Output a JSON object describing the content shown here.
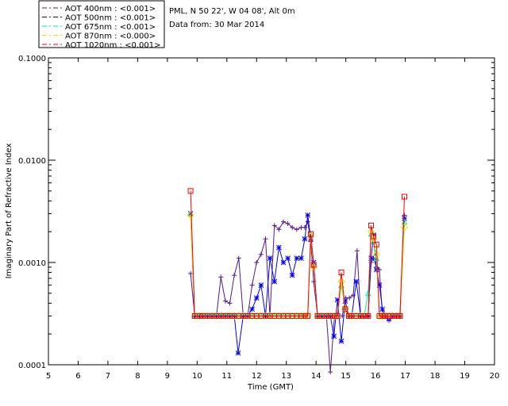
{
  "chart_data": {
    "type": "line",
    "header": {
      "site": "PML, N 50 22', W 04 08', Alt 0m",
      "date": "Data from: 30 Mar 2014"
    },
    "xlabel": "Time (GMT)",
    "ylabel": "Imaginary Part of Refractive Index",
    "xlim": [
      5,
      20
    ],
    "ylim": [
      0.0001,
      0.1
    ],
    "yscale": "log",
    "x_ticks": [
      "5",
      "6",
      "7",
      "8",
      "9",
      "10",
      "11",
      "12",
      "13",
      "14",
      "15",
      "16",
      "17",
      "18",
      "19",
      "20"
    ],
    "y_ticks": [
      {
        "value": 0.0001,
        "label": "0.0001"
      },
      {
        "value": 0.001,
        "label": "0.0010"
      },
      {
        "value": 0.01,
        "label": "0.0100"
      },
      {
        "value": 0.1,
        "label": "0.1000"
      }
    ],
    "legend_position": "top-left outside",
    "series": [
      {
        "name": "AOT  400nm : <0.001>",
        "color": "#551a8b",
        "marker": "plus",
        "points": [
          [
            9.78,
            0.00078
          ],
          [
            9.92,
            0.0003
          ],
          [
            10.08,
            0.0003
          ],
          [
            10.2,
            0.0003
          ],
          [
            10.35,
            0.0003
          ],
          [
            10.5,
            0.0003
          ],
          [
            10.65,
            0.0003
          ],
          [
            10.8,
            0.00072
          ],
          [
            10.95,
            0.00042
          ],
          [
            11.1,
            0.0004
          ],
          [
            11.25,
            0.00075
          ],
          [
            11.4,
            0.0011
          ],
          [
            11.55,
            0.0003
          ],
          [
            11.7,
            0.0003
          ],
          [
            11.85,
            0.0006
          ],
          [
            12.0,
            0.001
          ],
          [
            12.15,
            0.0012
          ],
          [
            12.3,
            0.0017
          ],
          [
            12.45,
            0.0003
          ],
          [
            12.6,
            0.0023
          ],
          [
            12.75,
            0.0021
          ],
          [
            12.9,
            0.0025
          ],
          [
            13.05,
            0.0024
          ],
          [
            13.2,
            0.0022
          ],
          [
            13.35,
            0.0021
          ],
          [
            13.5,
            0.0022
          ],
          [
            13.62,
            0.0022
          ],
          [
            13.72,
            0.0025
          ],
          [
            13.82,
            0.0016
          ],
          [
            13.92,
            0.00065
          ],
          [
            14.05,
            0.0003
          ],
          [
            14.2,
            0.0003
          ],
          [
            14.35,
            0.0003
          ],
          [
            14.48,
            8.5e-05
          ],
          [
            14.62,
            0.0003
          ],
          [
            14.75,
            0.0003
          ],
          [
            14.88,
            0.0003
          ],
          [
            15.0,
            0.00045
          ],
          [
            15.12,
            0.00045
          ],
          [
            15.25,
            0.00048
          ],
          [
            15.38,
            0.0013
          ],
          [
            15.5,
            0.0003
          ],
          [
            15.62,
            0.0003
          ],
          [
            15.75,
            0.0003
          ],
          [
            15.85,
            0.001
          ],
          [
            15.93,
            0.0011
          ],
          [
            16.03,
            0.0009
          ],
          [
            16.13,
            0.00085
          ],
          [
            16.23,
            0.0003
          ],
          [
            16.33,
            0.0003
          ],
          [
            16.45,
            0.00027
          ],
          [
            16.58,
            0.0003
          ],
          [
            16.7,
            0.0003
          ],
          [
            16.82,
            0.0003
          ],
          [
            16.97,
            0.0029
          ]
        ]
      },
      {
        "name": "AOT  500nm : <0.001>",
        "color": "#0000ff",
        "marker": "star",
        "points": [
          [
            9.78,
            0.003
          ],
          [
            9.92,
            0.0003
          ],
          [
            10.08,
            0.0003
          ],
          [
            10.2,
            0.0003
          ],
          [
            10.35,
            0.0003
          ],
          [
            10.5,
            0.0003
          ],
          [
            10.65,
            0.0003
          ],
          [
            10.8,
            0.0003
          ],
          [
            10.95,
            0.0003
          ],
          [
            11.1,
            0.0003
          ],
          [
            11.25,
            0.0003
          ],
          [
            11.38,
            0.00013
          ],
          [
            11.55,
            0.0003
          ],
          [
            11.7,
            0.0003
          ],
          [
            11.85,
            0.00035
          ],
          [
            12.0,
            0.00045
          ],
          [
            12.15,
            0.0006
          ],
          [
            12.3,
            0.0003
          ],
          [
            12.45,
            0.0011
          ],
          [
            12.6,
            0.00065
          ],
          [
            12.75,
            0.0014
          ],
          [
            12.9,
            0.001
          ],
          [
            13.05,
            0.0011
          ],
          [
            13.2,
            0.00075
          ],
          [
            13.35,
            0.0011
          ],
          [
            13.5,
            0.0011
          ],
          [
            13.62,
            0.0017
          ],
          [
            13.72,
            0.0029
          ],
          [
            13.82,
            0.0017
          ],
          [
            13.92,
            0.001
          ],
          [
            14.05,
            0.0003
          ],
          [
            14.2,
            0.0003
          ],
          [
            14.35,
            0.0003
          ],
          [
            14.48,
            0.0003
          ],
          [
            14.6,
            0.00019
          ],
          [
            14.72,
            0.00043
          ],
          [
            14.85,
            0.00017
          ],
          [
            14.98,
            0.00042
          ],
          [
            15.1,
            0.0003
          ],
          [
            15.2,
            0.0003
          ],
          [
            15.35,
            0.00065
          ],
          [
            15.5,
            0.0003
          ],
          [
            15.62,
            0.0003
          ],
          [
            15.75,
            0.0003
          ],
          [
            15.85,
            0.0011
          ],
          [
            15.93,
            0.00185
          ],
          [
            16.03,
            0.00085
          ],
          [
            16.13,
            0.0006
          ],
          [
            16.23,
            0.00035
          ],
          [
            16.33,
            0.0003
          ],
          [
            16.45,
            0.00028
          ],
          [
            16.58,
            0.0003
          ],
          [
            16.7,
            0.0003
          ],
          [
            16.82,
            0.0003
          ],
          [
            16.97,
            0.0027
          ]
        ]
      },
      {
        "name": "AOT  675nm : <0.001>",
        "color": "#00e5a0",
        "marker": "triangle",
        "points": [
          [
            9.78,
            0.003
          ],
          [
            9.92,
            0.0003
          ],
          [
            10.08,
            0.0003
          ],
          [
            10.2,
            0.0003
          ],
          [
            10.35,
            0.0003
          ],
          [
            10.5,
            0.0003
          ],
          [
            10.65,
            0.0003
          ],
          [
            10.8,
            0.0003
          ],
          [
            10.95,
            0.0003
          ],
          [
            11.1,
            0.0003
          ],
          [
            11.25,
            0.0003
          ],
          [
            11.4,
            0.0003
          ],
          [
            11.55,
            0.0003
          ],
          [
            11.7,
            0.0003
          ],
          [
            11.85,
            0.0003
          ],
          [
            12.0,
            0.0003
          ],
          [
            12.15,
            0.0003
          ],
          [
            12.3,
            0.0003
          ],
          [
            12.45,
            0.0003
          ],
          [
            12.6,
            0.0003
          ],
          [
            12.75,
            0.0003
          ],
          [
            12.9,
            0.0003
          ],
          [
            13.05,
            0.0003
          ],
          [
            13.2,
            0.0003
          ],
          [
            13.35,
            0.0003
          ],
          [
            13.5,
            0.0003
          ],
          [
            13.62,
            0.0003
          ],
          [
            13.72,
            0.0003
          ],
          [
            13.82,
            0.0019
          ],
          [
            13.92,
            0.00095
          ],
          [
            14.05,
            0.0003
          ],
          [
            14.2,
            0.0003
          ],
          [
            14.35,
            0.0003
          ],
          [
            14.48,
            0.0003
          ],
          [
            14.62,
            0.0003
          ],
          [
            14.72,
            0.0003
          ],
          [
            14.85,
            0.0006
          ],
          [
            14.98,
            0.00035
          ],
          [
            15.1,
            0.0003
          ],
          [
            15.2,
            0.0003
          ],
          [
            15.35,
            0.0003
          ],
          [
            15.5,
            0.0003
          ],
          [
            15.62,
            0.0003
          ],
          [
            15.75,
            0.0005
          ],
          [
            15.85,
            0.0019
          ],
          [
            15.93,
            0.0016
          ],
          [
            16.03,
            0.0011
          ],
          [
            16.13,
            0.0003
          ],
          [
            16.23,
            0.0003
          ],
          [
            16.33,
            0.0003
          ],
          [
            16.45,
            0.0003
          ],
          [
            16.58,
            0.0003
          ],
          [
            16.7,
            0.0003
          ],
          [
            16.82,
            0.0003
          ],
          [
            16.97,
            0.0025
          ]
        ]
      },
      {
        "name": "AOT  870nm : <0.000>",
        "color": "#ffd700",
        "marker": "diamond",
        "points": [
          [
            9.78,
            0.0029
          ],
          [
            9.92,
            0.0003
          ],
          [
            10.08,
            0.0003
          ],
          [
            10.2,
            0.0003
          ],
          [
            10.35,
            0.0003
          ],
          [
            10.5,
            0.0003
          ],
          [
            10.65,
            0.0003
          ],
          [
            10.8,
            0.0003
          ],
          [
            10.95,
            0.0003
          ],
          [
            11.1,
            0.0003
          ],
          [
            11.25,
            0.0003
          ],
          [
            11.4,
            0.0003
          ],
          [
            11.55,
            0.0003
          ],
          [
            11.7,
            0.0003
          ],
          [
            11.85,
            0.0003
          ],
          [
            12.0,
            0.0003
          ],
          [
            12.15,
            0.0003
          ],
          [
            12.3,
            0.0003
          ],
          [
            12.45,
            0.0003
          ],
          [
            12.6,
            0.0003
          ],
          [
            12.75,
            0.0003
          ],
          [
            12.9,
            0.0003
          ],
          [
            13.05,
            0.0003
          ],
          [
            13.2,
            0.0003
          ],
          [
            13.35,
            0.0003
          ],
          [
            13.5,
            0.0003
          ],
          [
            13.62,
            0.0003
          ],
          [
            13.72,
            0.0003
          ],
          [
            13.82,
            0.0018
          ],
          [
            13.92,
            0.0009
          ],
          [
            14.05,
            0.0003
          ],
          [
            14.2,
            0.0003
          ],
          [
            14.35,
            0.0003
          ],
          [
            14.48,
            0.0003
          ],
          [
            14.62,
            0.0003
          ],
          [
            14.72,
            0.0003
          ],
          [
            14.85,
            0.00065
          ],
          [
            14.98,
            0.00035
          ],
          [
            15.1,
            0.0003
          ],
          [
            15.2,
            0.0003
          ],
          [
            15.35,
            0.0003
          ],
          [
            15.5,
            0.0003
          ],
          [
            15.62,
            0.0003
          ],
          [
            15.75,
            0.0003
          ],
          [
            15.85,
            0.002
          ],
          [
            15.93,
            0.0017
          ],
          [
            16.03,
            0.0012
          ],
          [
            16.13,
            0.0003
          ],
          [
            16.23,
            0.0003
          ],
          [
            16.33,
            0.0003
          ],
          [
            16.45,
            0.0003
          ],
          [
            16.58,
            0.0003
          ],
          [
            16.7,
            0.0003
          ],
          [
            16.82,
            0.0003
          ],
          [
            16.97,
            0.0022
          ]
        ]
      },
      {
        "name": "AOT 1020nm : <0.001>",
        "color": "#ff0000",
        "marker": "square",
        "points": [
          [
            9.78,
            0.005
          ],
          [
            9.92,
            0.0003
          ],
          [
            10.08,
            0.0003
          ],
          [
            10.2,
            0.0003
          ],
          [
            10.35,
            0.0003
          ],
          [
            10.5,
            0.0003
          ],
          [
            10.65,
            0.0003
          ],
          [
            10.8,
            0.0003
          ],
          [
            10.95,
            0.0003
          ],
          [
            11.1,
            0.0003
          ],
          [
            11.25,
            0.0003
          ],
          [
            11.4,
            0.0003
          ],
          [
            11.55,
            0.0003
          ],
          [
            11.7,
            0.0003
          ],
          [
            11.85,
            0.0003
          ],
          [
            12.0,
            0.0003
          ],
          [
            12.15,
            0.0003
          ],
          [
            12.3,
            0.0003
          ],
          [
            12.45,
            0.0003
          ],
          [
            12.6,
            0.0003
          ],
          [
            12.75,
            0.0003
          ],
          [
            12.9,
            0.0003
          ],
          [
            13.05,
            0.0003
          ],
          [
            13.2,
            0.0003
          ],
          [
            13.35,
            0.0003
          ],
          [
            13.5,
            0.0003
          ],
          [
            13.62,
            0.0003
          ],
          [
            13.72,
            0.0003
          ],
          [
            13.82,
            0.0019
          ],
          [
            13.92,
            0.00095
          ],
          [
            14.05,
            0.0003
          ],
          [
            14.2,
            0.0003
          ],
          [
            14.35,
            0.0003
          ],
          [
            14.48,
            0.0003
          ],
          [
            14.62,
            0.0003
          ],
          [
            14.72,
            0.0003
          ],
          [
            14.85,
            0.0008
          ],
          [
            14.98,
            0.00035
          ],
          [
            15.1,
            0.0003
          ],
          [
            15.2,
            0.0003
          ],
          [
            15.35,
            0.0003
          ],
          [
            15.5,
            0.0003
          ],
          [
            15.62,
            0.0003
          ],
          [
            15.75,
            0.0003
          ],
          [
            15.85,
            0.0023
          ],
          [
            15.93,
            0.0018
          ],
          [
            16.03,
            0.0015
          ],
          [
            16.13,
            0.0003
          ],
          [
            16.23,
            0.0003
          ],
          [
            16.33,
            0.0003
          ],
          [
            16.45,
            0.0003
          ],
          [
            16.58,
            0.0003
          ],
          [
            16.7,
            0.0003
          ],
          [
            16.82,
            0.0003
          ],
          [
            16.97,
            0.0044
          ]
        ]
      }
    ]
  }
}
